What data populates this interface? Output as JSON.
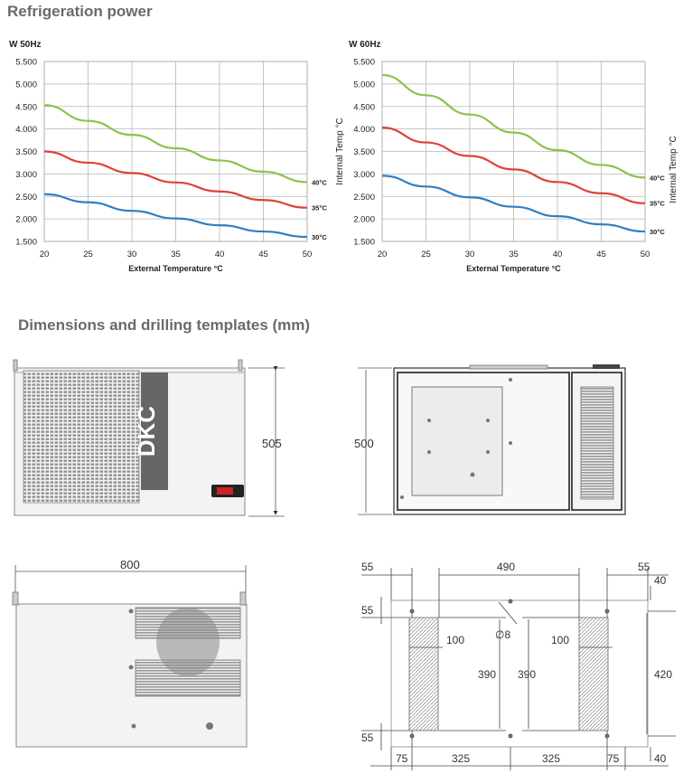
{
  "headings": {
    "refrigeration": "Refrigeration power",
    "dimensions": "Dimensions and drilling templates (mm)"
  },
  "chart_data": [
    {
      "type": "line",
      "title": "W  50Hz",
      "xlabel": "External Temperature °C",
      "ylabel": "",
      "x": [
        20,
        25,
        30,
        35,
        40,
        45,
        50
      ],
      "x_tick_labels": [
        "20",
        "25",
        "30",
        "35",
        "40",
        "45",
        "50"
      ],
      "y_ticks": [
        1500,
        2000,
        2500,
        3000,
        3500,
        4000,
        4500,
        5000,
        5500
      ],
      "y_tick_labels": [
        "1.500",
        "2.000",
        "2.500",
        "3.000",
        "3.500",
        "4.000",
        "4.500",
        "5.000",
        "5.500"
      ],
      "xlim": [
        20,
        50
      ],
      "ylim": [
        1500,
        5500
      ],
      "grid": true,
      "legend": "inline-right",
      "series": [
        {
          "name": "40°C",
          "color": "#8bc34a",
          "values": [
            4530,
            4180,
            3870,
            3570,
            3300,
            3050,
            2820
          ]
        },
        {
          "name": "35°C",
          "color": "#e0403a",
          "values": [
            3500,
            3250,
            3020,
            2810,
            2610,
            2420,
            2250
          ]
        },
        {
          "name": "30°C",
          "color": "#2f7fc1",
          "values": [
            2550,
            2370,
            2180,
            2010,
            1860,
            1720,
            1600
          ]
        }
      ]
    },
    {
      "type": "line",
      "title": "W  60Hz",
      "xlabel": "External Temperature °C",
      "ylabel": "Internal Temp °C",
      "right_label": "Internal Temp °C",
      "x": [
        20,
        25,
        30,
        35,
        40,
        45,
        50
      ],
      "x_tick_labels": [
        "20",
        "25",
        "30",
        "35",
        "40",
        "45",
        "50"
      ],
      "y_ticks": [
        1500,
        2000,
        2500,
        3000,
        3500,
        4000,
        4500,
        5000,
        5500
      ],
      "y_tick_labels": [
        "1.500",
        "2.000",
        "2.500",
        "3.000",
        "3.500",
        "4.000",
        "4.500",
        "5.000",
        "5.500"
      ],
      "xlim": [
        20,
        50
      ],
      "ylim": [
        1500,
        5500
      ],
      "grid": true,
      "legend": "inline-right",
      "series": [
        {
          "name": "40°C",
          "color": "#8bc34a",
          "values": [
            5200,
            4750,
            4320,
            3920,
            3530,
            3200,
            2920
          ]
        },
        {
          "name": "35°C",
          "color": "#e0403a",
          "values": [
            4030,
            3700,
            3400,
            3100,
            2820,
            2570,
            2350
          ]
        },
        {
          "name": "30°C",
          "color": "#2f7fc1",
          "values": [
            2960,
            2720,
            2480,
            2270,
            2060,
            1880,
            1720
          ]
        }
      ]
    }
  ],
  "drawings": {
    "front": {
      "height": "505",
      "logo": "DKC"
    },
    "side": {
      "height": "500"
    },
    "top": {
      "width": "800"
    },
    "template": {
      "top_55_left": "55",
      "top_490": "490",
      "top_55_right": "55",
      "right_40_top": "40",
      "left_55_upper": "55",
      "hole_diameter": "∅8",
      "cutout_left_width": "100",
      "cutout_right_width": "100",
      "cutout_left_height": "390",
      "cutout_right_height": "390",
      "overall_height": "420",
      "left_55_lower": "55",
      "bottom_75_left": "75",
      "bottom_325_left": "325",
      "bottom_325_right": "325",
      "bottom_75_right": "75",
      "right_40_bottom": "40"
    }
  }
}
